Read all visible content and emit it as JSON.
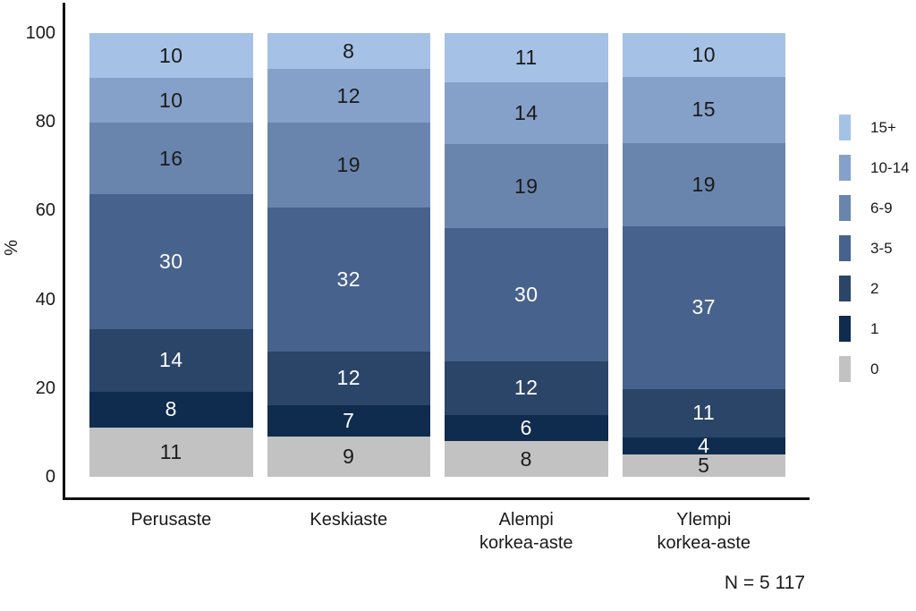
{
  "chart_data": {
    "type": "bar",
    "stacked": true,
    "title": "",
    "ylabel": "%",
    "ylim": [
      0,
      100
    ],
    "yticks": [
      0,
      20,
      40,
      60,
      80,
      100
    ],
    "grid": false,
    "legend_position": "right",
    "categories": [
      [
        "Perusaste"
      ],
      [
        "Keskiaste"
      ],
      [
        "Alempi",
        "korkea-aste"
      ],
      [
        "Ylempi",
        "korkea-aste"
      ]
    ],
    "series": [
      {
        "name": "15+",
        "color": "#a6c1e6",
        "text_color": "#1a1a1a",
        "values": [
          10,
          8,
          11,
          10
        ]
      },
      {
        "name": "10-14",
        "color": "#86a1c9",
        "text_color": "#1a1a1a",
        "values": [
          10,
          12,
          14,
          15
        ]
      },
      {
        "name": "6-9",
        "color": "#6a85ad",
        "text_color": "#1a1a1a",
        "values": [
          16,
          19,
          19,
          19
        ]
      },
      {
        "name": "3-5",
        "color": "#47628d",
        "text_color": "#ffffff",
        "values": [
          30,
          32,
          30,
          37
        ]
      },
      {
        "name": "2",
        "color": "#2b4569",
        "text_color": "#ffffff",
        "values": [
          14,
          12,
          12,
          11
        ]
      },
      {
        "name": "1",
        "color": "#0f2c4f",
        "text_color": "#ffffff",
        "values": [
          8,
          7,
          6,
          4
        ]
      },
      {
        "name": "0",
        "color": "#c2c2c2",
        "text_color": "#1a1a1a",
        "values": [
          11,
          9,
          8,
          5
        ]
      }
    ],
    "note": "N = 5 117",
    "axis_color": "#111111"
  }
}
